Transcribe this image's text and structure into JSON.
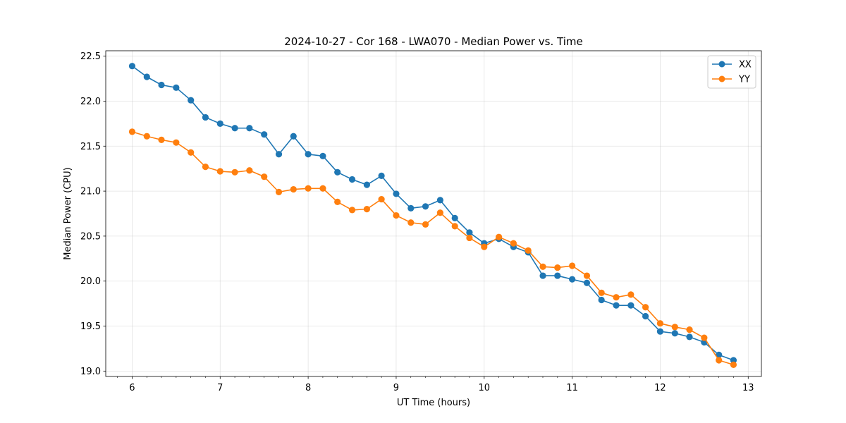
{
  "chart_data": {
    "type": "line",
    "title": "2024-10-27 - Cor 168 - LWA070 - Median Power vs. Time",
    "xlabel": "UT Time (hours)",
    "ylabel": "Median Power (CPU)",
    "xlim": [
      5.7,
      13.15
    ],
    "ylim": [
      18.94,
      22.56
    ],
    "xticks": [
      6,
      7,
      8,
      9,
      10,
      11,
      12,
      13
    ],
    "yticks": [
      19.0,
      19.5,
      20.0,
      20.5,
      21.0,
      21.5,
      22.0,
      22.5
    ],
    "ytick_labels": [
      "19.0",
      "19.5",
      "20.0",
      "20.5",
      "21.0",
      "21.5",
      "22.0",
      "22.5"
    ],
    "grid": true,
    "legend_position": "top-right",
    "x": [
      6.0,
      6.167,
      6.333,
      6.5,
      6.667,
      6.833,
      7.0,
      7.167,
      7.333,
      7.5,
      7.667,
      7.833,
      8.0,
      8.167,
      8.333,
      8.5,
      8.667,
      8.833,
      9.0,
      9.167,
      9.333,
      9.5,
      9.667,
      9.833,
      10.0,
      10.167,
      10.333,
      10.5,
      10.667,
      10.833,
      11.0,
      11.167,
      11.333,
      11.5,
      11.667,
      11.833,
      12.0,
      12.167,
      12.333,
      12.5,
      12.667,
      12.833
    ],
    "series": [
      {
        "name": "XX",
        "color": "#1f77b4",
        "values": [
          22.39,
          22.27,
          22.18,
          22.15,
          22.01,
          21.82,
          21.75,
          21.7,
          21.7,
          21.63,
          21.41,
          21.61,
          21.41,
          21.39,
          21.21,
          21.13,
          21.07,
          21.17,
          20.97,
          20.81,
          20.83,
          20.9,
          20.7,
          20.54,
          20.42,
          20.47,
          20.38,
          20.32,
          20.06,
          20.06,
          20.02,
          19.98,
          19.79,
          19.73,
          19.73,
          19.61,
          19.44,
          19.42,
          19.38,
          19.32,
          19.18,
          19.12
        ]
      },
      {
        "name": "YY",
        "color": "#ff7f0e",
        "values": [
          21.66,
          21.61,
          21.57,
          21.54,
          21.43,
          21.27,
          21.22,
          21.21,
          21.23,
          21.16,
          20.99,
          21.02,
          21.03,
          21.03,
          20.88,
          20.79,
          20.8,
          20.91,
          20.73,
          20.65,
          20.63,
          20.76,
          20.61,
          20.48,
          20.38,
          20.49,
          20.42,
          20.34,
          20.16,
          20.15,
          20.17,
          20.06,
          19.87,
          19.82,
          19.85,
          19.71,
          19.53,
          19.49,
          19.46,
          19.37,
          19.12,
          19.07
        ]
      }
    ]
  }
}
